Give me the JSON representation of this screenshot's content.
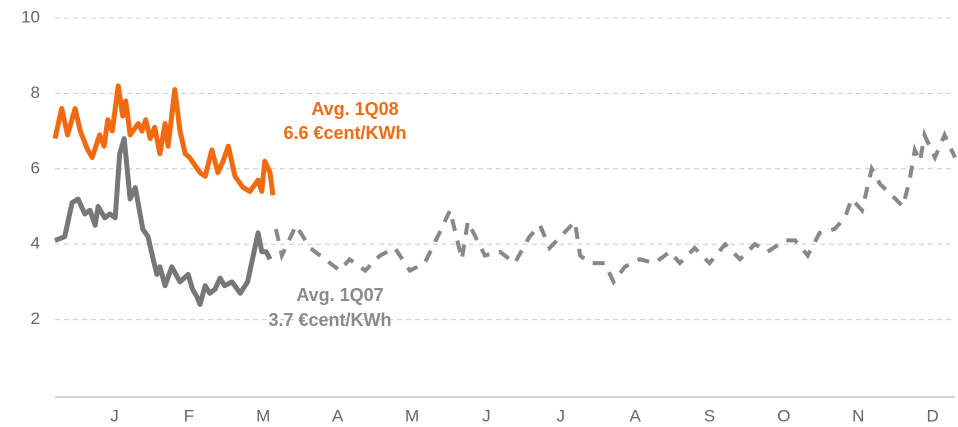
{
  "chart_data": {
    "type": "line",
    "xlim": [
      0,
      12.1
    ],
    "xticks": [
      {
        "value": 0.8,
        "label": "J"
      },
      {
        "value": 1.8,
        "label": "F"
      },
      {
        "value": 2.8,
        "label": "M"
      },
      {
        "value": 3.8,
        "label": "A"
      },
      {
        "value": 4.8,
        "label": "M"
      },
      {
        "value": 5.8,
        "label": "J"
      },
      {
        "value": 6.8,
        "label": "J"
      },
      {
        "value": 7.8,
        "label": "A"
      },
      {
        "value": 8.8,
        "label": "S"
      },
      {
        "value": 9.8,
        "label": "O"
      },
      {
        "value": 10.8,
        "label": "N"
      },
      {
        "value": 11.8,
        "label": "D"
      }
    ],
    "ylim": [
      0,
      10
    ],
    "yticks": [
      2,
      4,
      6,
      8,
      10
    ],
    "grid": true,
    "series": [
      {
        "color": "#f26a10",
        "dash": false,
        "x": [
          0,
          0.09,
          0.17,
          0.27,
          0.34,
          0.44,
          0.5,
          0.6,
          0.66,
          0.71,
          0.77,
          0.85,
          0.91,
          0.95,
          1.01,
          1.12,
          1.17,
          1.22,
          1.28,
          1.34,
          1.41,
          1.48,
          1.52,
          1.61,
          1.68,
          1.75,
          1.81,
          1.95,
          2.02,
          2.11,
          2.19,
          2.26,
          2.33,
          2.42,
          2.53,
          2.62,
          2.73,
          2.78,
          2.82,
          2.89,
          2.93
        ],
        "values": [
          6.8,
          7.6,
          6.9,
          7.6,
          7.0,
          6.5,
          6.3,
          6.9,
          6.6,
          7.3,
          7.0,
          8.2,
          7.4,
          7.8,
          6.9,
          7.2,
          7.0,
          7.3,
          6.8,
          7.1,
          6.4,
          7.2,
          6.6,
          8.1,
          7.0,
          6.4,
          6.3,
          5.9,
          5.8,
          6.5,
          5.9,
          6.2,
          6.6,
          5.8,
          5.5,
          5.4,
          5.7,
          5.4,
          6.2,
          5.9,
          5.3
        ]
      },
      {
        "color": "#777777",
        "dash": false,
        "x": [
          0,
          0.13,
          0.23,
          0.31,
          0.4,
          0.47,
          0.54,
          0.58,
          0.67,
          0.74,
          0.81,
          0.87,
          0.93,
          1.01,
          1.08,
          1.18,
          1.25,
          1.32,
          1.37,
          1.41,
          1.48,
          1.57,
          1.68,
          1.79,
          1.85,
          1.91,
          1.95,
          2.02,
          2.08,
          2.15,
          2.22,
          2.28,
          2.38,
          2.49,
          2.59,
          2.73,
          2.78,
          2.84,
          2.89
        ],
        "values": [
          4.1,
          4.2,
          5.1,
          5.2,
          4.8,
          4.9,
          4.5,
          5.0,
          4.7,
          4.8,
          4.7,
          6.4,
          6.8,
          5.2,
          5.5,
          4.4,
          4.2,
          3.6,
          3.2,
          3.4,
          2.9,
          3.4,
          3.0,
          3.2,
          2.8,
          2.6,
          2.4,
          2.9,
          2.7,
          2.8,
          3.1,
          2.9,
          3.0,
          2.7,
          3.0,
          4.3,
          3.8,
          3.8,
          3.6
        ]
      },
      {
        "color": "#888888",
        "dash": true,
        "x": [
          2.97,
          3.05,
          3.24,
          3.43,
          3.63,
          3.83,
          3.96,
          4.17,
          4.37,
          4.57,
          4.77,
          4.97,
          5.17,
          5.31,
          5.47,
          5.55,
          5.78,
          5.98,
          6.18,
          6.38,
          6.52,
          6.65,
          6.99,
          7.06,
          7.19,
          7.39,
          7.51,
          7.66,
          7.86,
          8.06,
          8.27,
          8.4,
          8.6,
          8.8,
          9.01,
          9.21,
          9.41,
          9.58,
          9.81,
          9.95,
          10.12,
          10.28,
          10.48,
          10.62,
          10.71,
          10.85,
          10.98,
          11.09,
          11.25,
          11.4,
          11.49,
          11.56,
          11.63,
          11.69,
          11.83,
          11.96,
          12.1
        ],
        "values": [
          4.4,
          3.7,
          4.5,
          3.9,
          3.6,
          3.3,
          3.6,
          3.3,
          3.7,
          3.9,
          3.3,
          3.5,
          4.3,
          4.9,
          3.6,
          4.6,
          3.7,
          3.8,
          3.5,
          4.2,
          4.5,
          3.9,
          4.6,
          3.7,
          3.5,
          3.5,
          3.0,
          3.4,
          3.6,
          3.5,
          3.8,
          3.5,
          3.9,
          3.5,
          4.0,
          3.6,
          4.0,
          3.8,
          4.1,
          4.1,
          3.7,
          4.3,
          4.4,
          4.7,
          5.2,
          4.9,
          6.0,
          5.6,
          5.3,
          5.0,
          5.7,
          6.5,
          6.2,
          6.9,
          6.3,
          6.9,
          6.3
        ]
      }
    ],
    "annotations": [
      {
        "color": "#f26a10",
        "lines": [
          "Avg. 1Q08",
          "6.6 €cent/KWh"
        ]
      },
      {
        "color": "#8a8a8a",
        "lines": [
          "Avg. 1Q07",
          "3.7 €cent/KWh"
        ]
      }
    ]
  }
}
